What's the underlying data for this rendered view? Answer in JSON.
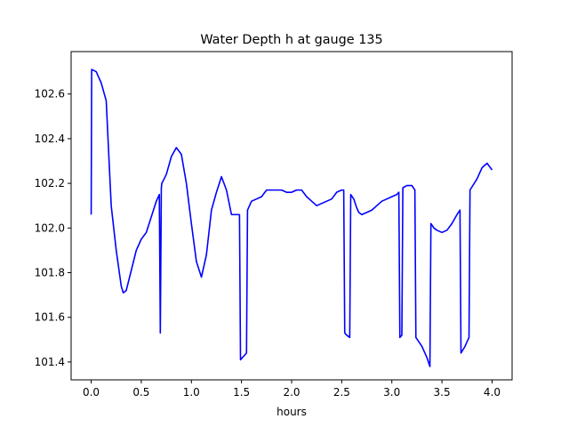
{
  "chart_data": {
    "type": "line",
    "title": "Water Depth h at gauge 135",
    "xlabel": "hours",
    "ylabel": "",
    "xlim": [
      -0.2,
      4.2
    ],
    "ylim": [
      101.32,
      102.79
    ],
    "xticks": [
      0.0,
      0.5,
      1.0,
      1.5,
      2.0,
      2.5,
      3.0,
      3.5,
      4.0
    ],
    "xtick_labels": [
      "0.0",
      "0.5",
      "1.0",
      "1.5",
      "2.0",
      "2.5",
      "3.0",
      "3.5",
      "4.0"
    ],
    "yticks": [
      101.4,
      101.6,
      101.8,
      102.0,
      102.2,
      102.4,
      102.6
    ],
    "ytick_labels": [
      "101.4",
      "101.6",
      "101.8",
      "102.0",
      "102.2",
      "102.4",
      "102.6"
    ],
    "grid": false,
    "legend": "none",
    "series": [
      {
        "color": "#0000ff",
        "x": [
          0.0,
          0.005,
          0.05,
          0.1,
          0.15,
          0.2,
          0.25,
          0.3,
          0.32,
          0.35,
          0.4,
          0.45,
          0.5,
          0.55,
          0.6,
          0.65,
          0.68,
          0.69,
          0.7,
          0.705,
          0.75,
          0.8,
          0.85,
          0.9,
          0.95,
          1.0,
          1.05,
          1.1,
          1.15,
          1.2,
          1.25,
          1.3,
          1.35,
          1.4,
          1.45,
          1.48,
          1.49,
          1.53,
          1.55,
          1.56,
          1.6,
          1.65,
          1.7,
          1.75,
          1.8,
          1.85,
          1.9,
          1.95,
          2.0,
          2.05,
          2.1,
          2.15,
          2.2,
          2.25,
          2.3,
          2.35,
          2.4,
          2.45,
          2.5,
          2.52,
          2.53,
          2.55,
          2.58,
          2.59,
          2.62,
          2.65,
          2.67,
          2.7,
          2.75,
          2.8,
          2.85,
          2.9,
          2.95,
          3.0,
          3.05,
          3.07,
          3.08,
          3.1,
          3.11,
          3.15,
          3.2,
          3.23,
          3.24,
          3.3,
          3.35,
          3.38,
          3.39,
          3.42,
          3.45,
          3.5,
          3.55,
          3.6,
          3.65,
          3.68,
          3.69,
          3.73,
          3.77,
          3.78,
          3.85,
          3.9,
          3.95,
          4.0
        ],
        "y": [
          102.06,
          102.71,
          102.7,
          102.65,
          102.57,
          102.1,
          101.9,
          101.74,
          101.71,
          101.72,
          101.81,
          101.9,
          101.95,
          101.98,
          102.05,
          102.12,
          102.15,
          101.53,
          102.18,
          102.2,
          102.24,
          102.32,
          102.36,
          102.33,
          102.2,
          102.02,
          101.85,
          101.78,
          101.88,
          102.08,
          102.16,
          102.23,
          102.17,
          102.06,
          102.06,
          102.06,
          101.41,
          101.43,
          101.44,
          102.08,
          102.12,
          102.13,
          102.14,
          102.17,
          102.17,
          102.17,
          102.17,
          102.16,
          102.16,
          102.17,
          102.17,
          102.14,
          102.12,
          102.1,
          102.11,
          102.12,
          102.13,
          102.16,
          102.17,
          102.17,
          101.53,
          101.52,
          101.51,
          102.15,
          102.13,
          102.09,
          102.07,
          102.06,
          102.07,
          102.08,
          102.1,
          102.12,
          102.13,
          102.14,
          102.15,
          102.16,
          101.51,
          101.52,
          102.18,
          102.19,
          102.19,
          102.17,
          101.51,
          101.47,
          101.42,
          101.38,
          102.02,
          102.0,
          101.99,
          101.98,
          101.99,
          102.02,
          102.06,
          102.08,
          101.44,
          101.47,
          101.51,
          102.17,
          102.22,
          102.27,
          102.29,
          102.26
        ]
      }
    ]
  }
}
